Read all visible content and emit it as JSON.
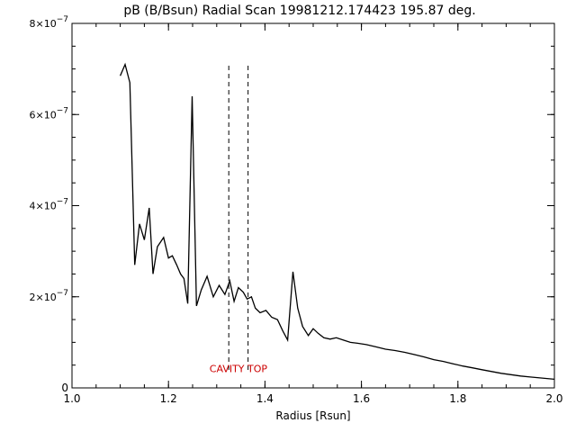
{
  "chart_data": {
    "type": "line",
    "title": "pB (B/Bsun) Radial Scan 19981212.174423 195.87 deg.",
    "xlabel": "Radius [Rsun]",
    "ylabel": "",
    "xlim": [
      1.0,
      2.0
    ],
    "ylim": [
      0,
      8e-07
    ],
    "x_ticks": [
      1.0,
      1.2,
      1.4,
      1.6,
      1.8,
      2.0
    ],
    "x_tick_labels": [
      "1.0",
      "1.2",
      "1.4",
      "1.6",
      "1.8",
      "2.0"
    ],
    "y_ticks": [
      0,
      2e-07,
      4e-07,
      6e-07,
      8e-07
    ],
    "y_tick_labels": [
      {
        "mantissa": "0",
        "exponent": ""
      },
      {
        "mantissa": "2×10",
        "exponent": "−7"
      },
      {
        "mantissa": "4×10",
        "exponent": "−7"
      },
      {
        "mantissa": "6×10",
        "exponent": "−7"
      },
      {
        "mantissa": "8×10",
        "exponent": "−7"
      }
    ],
    "grid": false,
    "line_color": "#000000",
    "series": [
      {
        "x": [
          1.1,
          1.11,
          1.12,
          1.13,
          1.14,
          1.15,
          1.16,
          1.168,
          1.177,
          1.19,
          1.2,
          1.208,
          1.217,
          1.225,
          1.232,
          1.24,
          1.249,
          1.258,
          1.268,
          1.28,
          1.293,
          1.305,
          1.317,
          1.327,
          1.336,
          1.345,
          1.355,
          1.363,
          1.372,
          1.38,
          1.39,
          1.402,
          1.414,
          1.426,
          1.437,
          1.447,
          1.458,
          1.468,
          1.478,
          1.49,
          1.5,
          1.51,
          1.522,
          1.535,
          1.548,
          1.562,
          1.577,
          1.592,
          1.61,
          1.63,
          1.65,
          1.67,
          1.69,
          1.71,
          1.73,
          1.75,
          1.77,
          1.79,
          1.81,
          1.83,
          1.85,
          1.87,
          1.89,
          1.91,
          1.93,
          1.95,
          1.97,
          1.99,
          2.0
        ],
        "y": [
          6.85e-07,
          7.1e-07,
          6.7e-07,
          2.7e-07,
          3.6e-07,
          3.25e-07,
          3.95e-07,
          2.5e-07,
          3.1e-07,
          3.3e-07,
          2.85e-07,
          2.9e-07,
          2.7e-07,
          2.5e-07,
          2.4e-07,
          1.85e-07,
          6.4e-07,
          1.8e-07,
          2.15e-07,
          2.45e-07,
          2e-07,
          2.25e-07,
          2.05e-07,
          2.35e-07,
          1.9e-07,
          2.2e-07,
          2.1e-07,
          1.95e-07,
          2e-07,
          1.75e-07,
          1.65e-07,
          1.7e-07,
          1.55e-07,
          1.5e-07,
          1.25e-07,
          1.05e-07,
          2.55e-07,
          1.75e-07,
          1.35e-07,
          1.15e-07,
          1.3e-07,
          1.2e-07,
          1.1e-07,
          1.07e-07,
          1.1e-07,
          1.05e-07,
          1e-07,
          9.8e-08,
          9.5e-08,
          9e-08,
          8.5e-08,
          8.2e-08,
          7.8e-08,
          7.3e-08,
          6.8e-08,
          6.2e-08,
          5.8e-08,
          5.3e-08,
          4.8e-08,
          4.4e-08,
          4e-08,
          3.6e-08,
          3.2e-08,
          2.9e-08,
          2.6e-08,
          2.4e-08,
          2.2e-08,
          2e-08,
          1.9e-08
        ]
      }
    ],
    "vlines": [
      1.325,
      1.365
    ],
    "vline_ylim": [
      0,
      7.15e-07
    ],
    "vline_style": "dashed",
    "annotation": {
      "text": "CAVITY TOP",
      "x": 1.345,
      "y": 3.5e-08,
      "color": "#cc0000"
    }
  }
}
